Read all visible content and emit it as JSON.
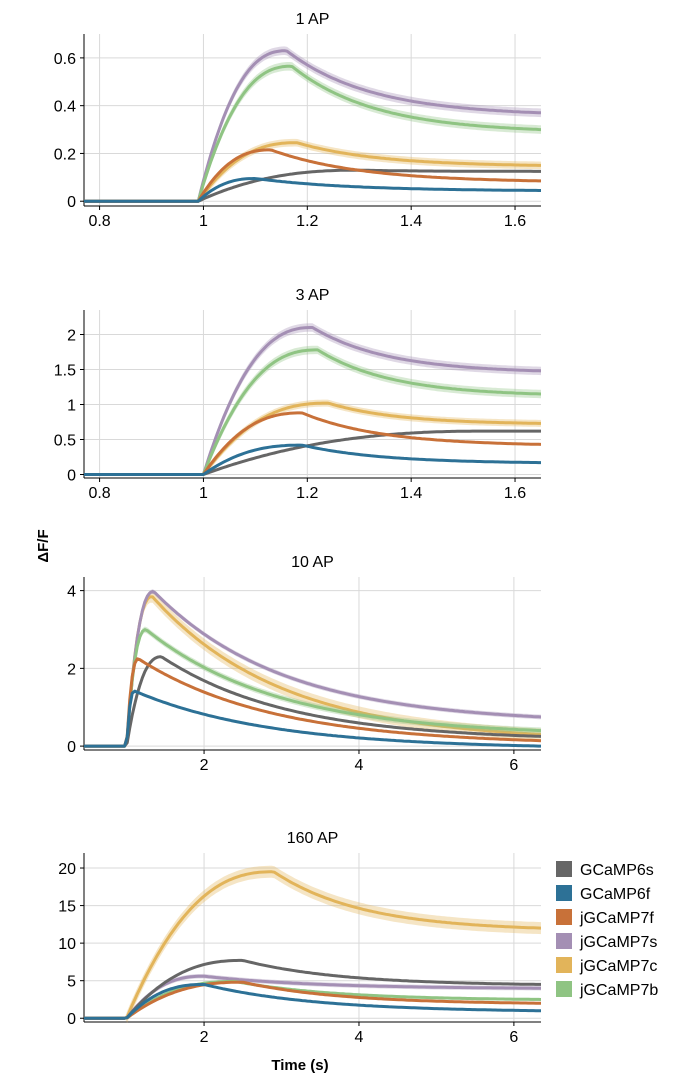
{
  "figure": {
    "ylabel": "ΔF/F",
    "xlabel": "Time (s)"
  },
  "legend": {
    "placement": "right",
    "items": [
      {
        "name": "GCaMP6s",
        "color": "#666666"
      },
      {
        "name": "GCaMP6f",
        "color": "#2d7196"
      },
      {
        "name": "jGCaMP7f",
        "color": "#c87139"
      },
      {
        "name": "jGCaMP7s",
        "color": "#a48fb4"
      },
      {
        "name": "jGCaMP7c",
        "color": "#e2b45a"
      },
      {
        "name": "jGCaMP7b",
        "color": "#8fc483"
      }
    ]
  },
  "chart_data": [
    {
      "type": "line",
      "title": "1 AP",
      "xlim": [
        0.77,
        1.65
      ],
      "ylim": [
        -0.02,
        0.7
      ],
      "xticks": [
        0.8,
        1,
        1.2,
        1.4,
        1.6
      ],
      "xtick_labels": [
        "0.8",
        "1",
        "1.2",
        "1.4",
        "1.6"
      ],
      "yticks": [
        0,
        0.2,
        0.4,
        0.6
      ],
      "ytick_labels": [
        "0",
        "0.2",
        "0.4",
        "0.6"
      ],
      "onset": 0.99,
      "series": [
        {
          "name": "GCaMP6s",
          "peak": 0.13,
          "t_peak": 1.3,
          "end": 0.125,
          "band": 0.004
        },
        {
          "name": "GCaMP6f",
          "peak": 0.095,
          "t_peak": 1.1,
          "end": 0.045,
          "band": 0.004
        },
        {
          "name": "jGCaMP7f",
          "peak": 0.215,
          "t_peak": 1.13,
          "end": 0.085,
          "band": 0.005
        },
        {
          "name": "jGCaMP7s",
          "peak": 0.63,
          "t_peak": 1.16,
          "end": 0.37,
          "band": 0.018
        },
        {
          "name": "jGCaMP7c",
          "peak": 0.245,
          "t_peak": 1.18,
          "end": 0.15,
          "band": 0.016
        },
        {
          "name": "jGCaMP7b",
          "peak": 0.565,
          "t_peak": 1.17,
          "end": 0.3,
          "band": 0.018
        }
      ]
    },
    {
      "type": "line",
      "title": "3 AP",
      "xlim": [
        0.77,
        1.65
      ],
      "ylim": [
        -0.05,
        2.35
      ],
      "xticks": [
        0.8,
        1,
        1.2,
        1.4,
        1.6
      ],
      "xtick_labels": [
        "0.8",
        "1",
        "1.2",
        "1.4",
        "1.6"
      ],
      "yticks": [
        0,
        0.5,
        1,
        1.5,
        2
      ],
      "ytick_labels": [
        "0",
        "0.5",
        "1",
        "1.5",
        "2"
      ],
      "onset": 1.0,
      "series": [
        {
          "name": "GCaMP6s",
          "peak": 0.62,
          "t_peak": 1.55,
          "end": 0.62,
          "band": 0.01
        },
        {
          "name": "GCaMP6f",
          "peak": 0.42,
          "t_peak": 1.19,
          "end": 0.17,
          "band": 0.01
        },
        {
          "name": "jGCaMP7f",
          "peak": 0.88,
          "t_peak": 1.19,
          "end": 0.43,
          "band": 0.015
        },
        {
          "name": "jGCaMP7s",
          "peak": 2.1,
          "t_peak": 1.21,
          "end": 1.48,
          "band": 0.06
        },
        {
          "name": "jGCaMP7c",
          "peak": 1.02,
          "t_peak": 1.24,
          "end": 0.73,
          "band": 0.05
        },
        {
          "name": "jGCaMP7b",
          "peak": 1.78,
          "t_peak": 1.22,
          "end": 1.15,
          "band": 0.06
        }
      ]
    },
    {
      "type": "line",
      "title": "10 AP",
      "xlim": [
        0.45,
        6.35
      ],
      "ylim": [
        -0.1,
        4.35
      ],
      "xticks": [
        2,
        4,
        6
      ],
      "xtick_labels": [
        "2",
        "4",
        "6"
      ],
      "yticks": [
        0,
        2,
        4
      ],
      "ytick_labels": [
        "0",
        "2",
        "4"
      ],
      "onset": 1.0,
      "series": [
        {
          "name": "GCaMP6s",
          "peak": 2.3,
          "t_peak": 1.45,
          "end": 0.25,
          "band": 0.03
        },
        {
          "name": "GCaMP6f",
          "peak": 1.42,
          "t_peak": 1.1,
          "end": 0.0,
          "band": 0.02
        },
        {
          "name": "jGCaMP7f",
          "peak": 2.25,
          "t_peak": 1.15,
          "end": 0.14,
          "band": 0.03
        },
        {
          "name": "jGCaMP7s",
          "peak": 3.98,
          "t_peak": 1.35,
          "end": 0.75,
          "band": 0.06
        },
        {
          "name": "jGCaMP7c",
          "peak": 3.85,
          "t_peak": 1.33,
          "end": 0.3,
          "band": 0.15
        },
        {
          "name": "jGCaMP7b",
          "peak": 3.0,
          "t_peak": 1.25,
          "end": 0.4,
          "band": 0.08
        }
      ]
    },
    {
      "type": "line",
      "title": "160 AP",
      "xlim": [
        0.45,
        6.35
      ],
      "ylim": [
        -0.5,
        22
      ],
      "xticks": [
        2,
        4,
        6
      ],
      "xtick_labels": [
        "2",
        "4",
        "6"
      ],
      "yticks": [
        0,
        5,
        10,
        15,
        20
      ],
      "ytick_labels": [
        "0",
        "5",
        "10",
        "15",
        "20"
      ],
      "onset": 1.0,
      "series": [
        {
          "name": "GCaMP6s",
          "peak": 7.7,
          "t_peak": 2.5,
          "end": 4.5,
          "band": 0.1
        },
        {
          "name": "GCaMP6f",
          "peak": 4.5,
          "t_peak": 2.0,
          "end": 1.0,
          "band": 0.1
        },
        {
          "name": "jGCaMP7f",
          "peak": 4.8,
          "t_peak": 2.5,
          "end": 2.0,
          "band": 0.15
        },
        {
          "name": "jGCaMP7s",
          "peak": 5.6,
          "t_peak": 2.0,
          "end": 4.0,
          "band": 0.3
        },
        {
          "name": "jGCaMP7c",
          "peak": 19.5,
          "t_peak": 2.9,
          "end": 12.0,
          "band": 0.8
        },
        {
          "name": "jGCaMP7b",
          "peak": 4.9,
          "t_peak": 2.4,
          "end": 2.5,
          "band": 0.2
        }
      ]
    }
  ]
}
